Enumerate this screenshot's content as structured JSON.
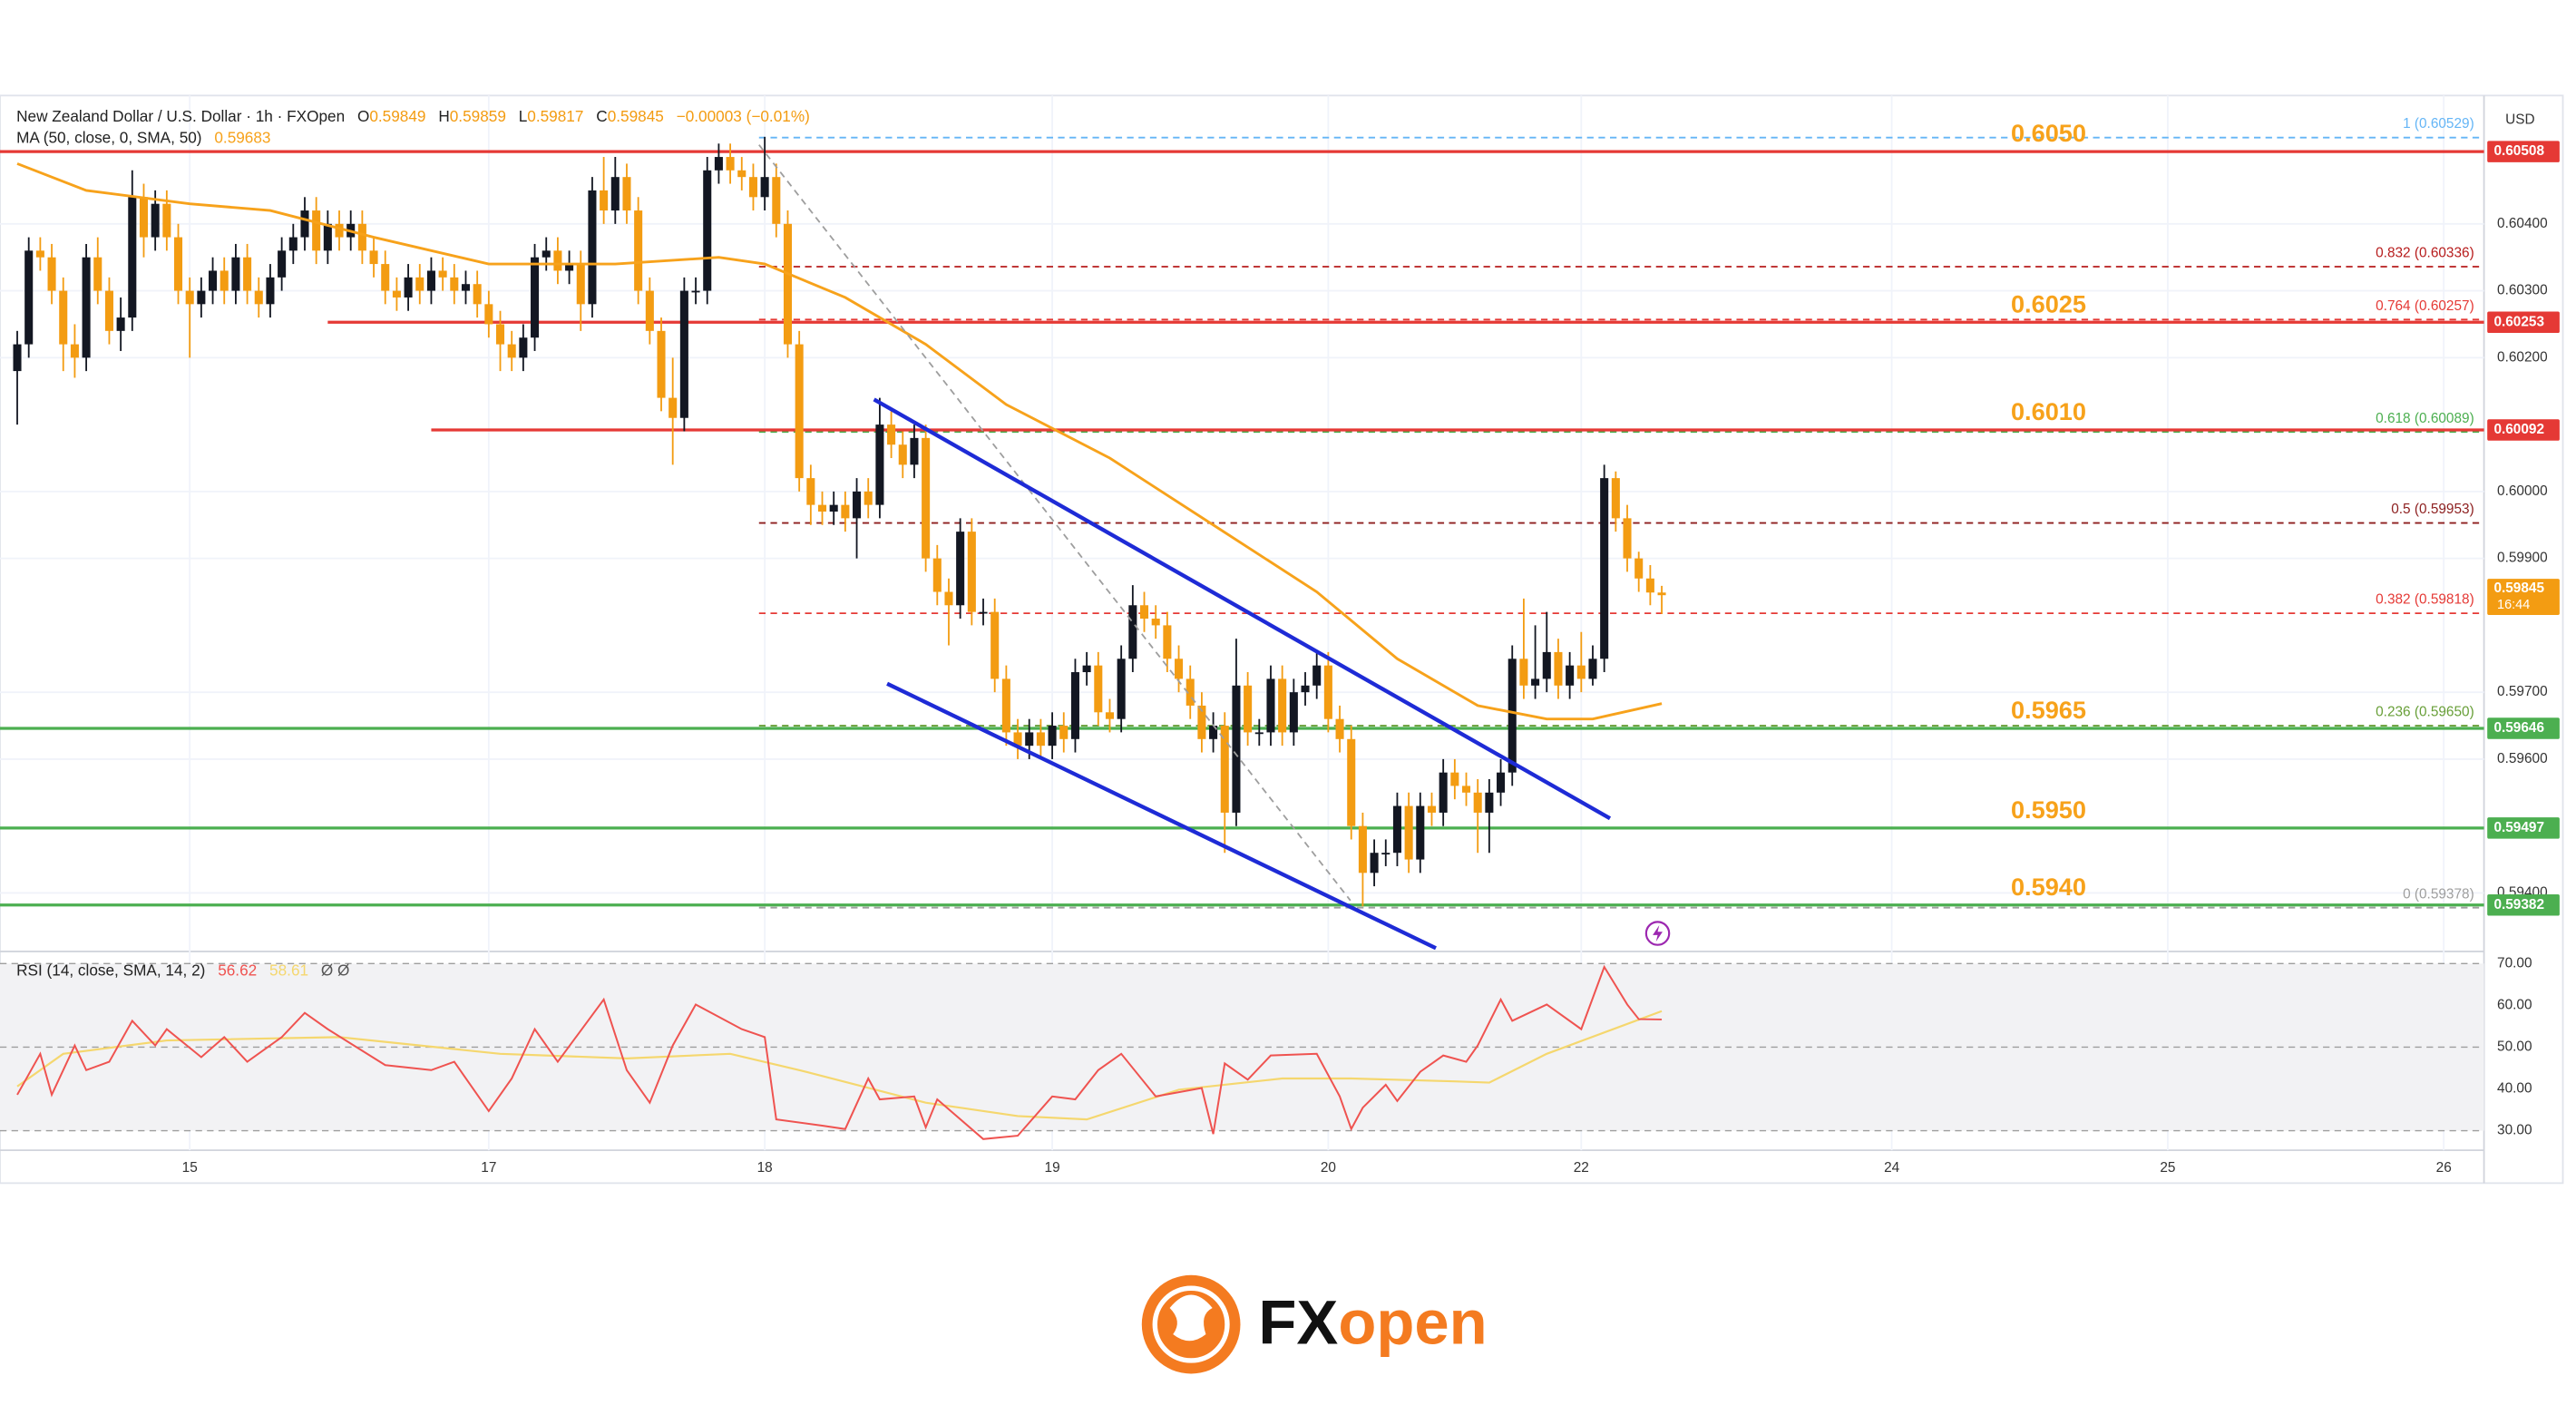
{
  "chart_data": {
    "type": "candlestick",
    "title": "New Zealand Dollar / U.S. Dollar · 1h · FXOpen",
    "ohlc_labels": [
      "O",
      "H",
      "L",
      "C"
    ],
    "change": "−0.00003 (−0.01%)",
    "currency": "USD",
    "up_color": "#131722",
    "down_color": "#f39c12",
    "open": [
      0.6018,
      0.6022,
      0.6036,
      0.6035,
      0.603,
      0.6022,
      0.602,
      0.6035,
      0.603,
      0.6024,
      0.6026,
      0.6044,
      0.6038,
      0.6043,
      0.6038,
      0.603,
      0.6028,
      0.603,
      0.6033,
      0.603,
      0.6035,
      0.603,
      0.6028,
      0.6032,
      0.6036,
      0.6038,
      0.6042,
      0.6036,
      0.604,
      0.6038,
      0.604,
      0.6036,
      0.6034,
      0.603,
      0.6029,
      0.6032,
      0.603,
      0.6033,
      0.6032,
      0.603,
      0.6031,
      0.6028,
      0.6025,
      0.6022,
      0.602,
      0.6023,
      0.6035,
      0.6036,
      0.6033,
      0.6034,
      0.6028,
      0.6045,
      0.6042,
      0.6047,
      0.6042,
      0.603,
      0.6024,
      0.6014,
      0.6011,
      0.603,
      0.603,
      0.6048,
      0.605,
      0.6048,
      0.6047,
      0.6044,
      0.6047,
      0.604,
      0.6022,
      0.6002,
      0.5998,
      0.5997,
      0.5998,
      0.5996,
      0.6,
      0.5998,
      0.601,
      0.6007,
      0.6004,
      0.6008,
      0.599,
      0.5985,
      0.5983,
      0.5994,
      0.5982,
      0.5982,
      0.5972,
      0.5964,
      0.5962,
      0.5964,
      0.5962,
      0.5965,
      0.5963,
      0.5973,
      0.5974,
      0.5967,
      0.5966,
      0.5975,
      0.5983,
      0.5981,
      0.598,
      0.5975,
      0.5972,
      0.5968,
      0.5963,
      0.5965,
      0.5952,
      0.5971,
      0.5964,
      0.5964,
      0.5972,
      0.5964,
      0.597,
      0.5971,
      0.5974,
      0.5966,
      0.5963,
      0.595,
      0.5943,
      0.5946,
      0.5946,
      0.5953,
      0.5945,
      0.5953,
      0.5952,
      0.5958,
      0.5956,
      0.5955,
      0.5952,
      0.5955,
      0.5958,
      0.5975,
      0.5971,
      0.5972,
      0.5976,
      0.5971,
      0.5974,
      0.5972,
      0.5975,
      0.6002,
      0.5996,
      0.599,
      0.5987,
      0.59849
    ],
    "high": [
      0.6024,
      0.6038,
      0.6038,
      0.6037,
      0.6032,
      0.6025,
      0.6037,
      0.6038,
      0.6032,
      0.6029,
      0.6048,
      0.6046,
      0.6045,
      0.6045,
      0.604,
      0.6032,
      0.6032,
      0.6035,
      0.6035,
      0.6037,
      0.6037,
      0.6032,
      0.6034,
      0.6038,
      0.604,
      0.6044,
      0.6044,
      0.6042,
      0.6042,
      0.6042,
      0.6042,
      0.6038,
      0.6036,
      0.6032,
      0.6034,
      0.6034,
      0.6035,
      0.6035,
      0.6034,
      0.6033,
      0.6033,
      0.603,
      0.6027,
      0.6024,
      0.6025,
      0.6037,
      0.6038,
      0.6038,
      0.6036,
      0.6036,
      0.6047,
      0.605,
      0.605,
      0.6049,
      0.6044,
      0.6032,
      0.6026,
      0.602,
      0.6032,
      0.6032,
      0.605,
      0.6052,
      0.6052,
      0.605,
      0.6049,
      0.6053,
      0.6049,
      0.6042,
      0.6024,
      0.6004,
      0.6,
      0.6,
      0.6,
      0.6002,
      0.6002,
      0.6014,
      0.6012,
      0.6009,
      0.601,
      0.601,
      0.5992,
      0.5987,
      0.5996,
      0.5996,
      0.5984,
      0.5984,
      0.5974,
      0.5966,
      0.5966,
      0.5966,
      0.5967,
      0.5967,
      0.5975,
      0.5976,
      0.5976,
      0.5969,
      0.5977,
      0.5986,
      0.5985,
      0.5983,
      0.5982,
      0.5977,
      0.5974,
      0.597,
      0.5967,
      0.5967,
      0.5978,
      0.5973,
      0.5966,
      0.5974,
      0.5974,
      0.5972,
      0.5973,
      0.5976,
      0.5976,
      0.5968,
      0.5965,
      0.5952,
      0.5948,
      0.5948,
      0.5955,
      0.5955,
      0.5955,
      0.5955,
      0.596,
      0.596,
      0.5958,
      0.5957,
      0.5957,
      0.596,
      0.5977,
      0.5984,
      0.598,
      0.5982,
      0.5978,
      0.5976,
      0.5979,
      0.5977,
      0.6004,
      0.6003,
      0.5998,
      0.5991,
      0.5989,
      0.59859
    ],
    "low": [
      0.601,
      0.602,
      0.6033,
      0.6028,
      0.6018,
      0.6017,
      0.6018,
      0.6028,
      0.6022,
      0.6021,
      0.6024,
      0.6035,
      0.6036,
      0.6036,
      0.6028,
      0.602,
      0.6026,
      0.6028,
      0.6028,
      0.6028,
      0.6028,
      0.6026,
      0.6026,
      0.603,
      0.6034,
      0.6036,
      0.6034,
      0.6034,
      0.6036,
      0.6036,
      0.6034,
      0.6032,
      0.6028,
      0.6027,
      0.6027,
      0.6028,
      0.6028,
      0.603,
      0.6028,
      0.6028,
      0.6026,
      0.6023,
      0.6018,
      0.6018,
      0.6018,
      0.6021,
      0.6033,
      0.6031,
      0.6031,
      0.6024,
      0.6026,
      0.604,
      0.604,
      0.604,
      0.6028,
      0.6022,
      0.6012,
      0.6004,
      0.6009,
      0.6028,
      0.6028,
      0.6046,
      0.6046,
      0.6045,
      0.6042,
      0.6042,
      0.6038,
      0.602,
      0.6,
      0.5995,
      0.5995,
      0.5995,
      0.5994,
      0.599,
      0.5996,
      0.5996,
      0.6005,
      0.6002,
      0.6002,
      0.5988,
      0.5983,
      0.5977,
      0.5981,
      0.598,
      0.598,
      0.597,
      0.5962,
      0.596,
      0.596,
      0.596,
      0.596,
      0.5961,
      0.5961,
      0.5971,
      0.5965,
      0.5964,
      0.5964,
      0.5973,
      0.5979,
      0.5978,
      0.5973,
      0.597,
      0.5966,
      0.5961,
      0.5961,
      0.5946,
      0.595,
      0.5962,
      0.5962,
      0.5962,
      0.5962,
      0.5962,
      0.5968,
      0.5969,
      0.5964,
      0.5961,
      0.5948,
      0.5938,
      0.5941,
      0.5944,
      0.5944,
      0.5943,
      0.5943,
      0.595,
      0.595,
      0.5954,
      0.5953,
      0.5946,
      0.5946,
      0.5953,
      0.5956,
      0.5969,
      0.5969,
      0.597,
      0.5969,
      0.5969,
      0.597,
      0.5971,
      0.5973,
      0.5994,
      0.5988,
      0.5985,
      0.5983,
      0.59817
    ],
    "close": [
      0.6022,
      0.6036,
      0.6035,
      0.603,
      0.6022,
      0.602,
      0.6035,
      0.603,
      0.6024,
      0.6026,
      0.6044,
      0.6038,
      0.6043,
      0.6038,
      0.603,
      0.6028,
      0.603,
      0.6033,
      0.603,
      0.6035,
      0.603,
      0.6028,
      0.6032,
      0.6036,
      0.6038,
      0.6042,
      0.6036,
      0.604,
      0.6038,
      0.604,
      0.6036,
      0.6034,
      0.603,
      0.6029,
      0.6032,
      0.603,
      0.6033,
      0.6032,
      0.603,
      0.6031,
      0.6028,
      0.6025,
      0.6022,
      0.602,
      0.6023,
      0.6035,
      0.6036,
      0.6033,
      0.6034,
      0.6028,
      0.6045,
      0.6042,
      0.6047,
      0.6042,
      0.603,
      0.6024,
      0.6014,
      0.6011,
      0.603,
      0.603,
      0.6048,
      0.605,
      0.6048,
      0.6047,
      0.6044,
      0.6047,
      0.604,
      0.6022,
      0.6002,
      0.5998,
      0.5997,
      0.5998,
      0.5996,
      0.6,
      0.5998,
      0.601,
      0.6007,
      0.6004,
      0.6008,
      0.599,
      0.5985,
      0.5983,
      0.5994,
      0.5982,
      0.5982,
      0.5972,
      0.5964,
      0.5962,
      0.5964,
      0.5962,
      0.5965,
      0.5963,
      0.5973,
      0.5974,
      0.5967,
      0.5966,
      0.5975,
      0.5983,
      0.5981,
      0.598,
      0.5975,
      0.5972,
      0.5968,
      0.5963,
      0.5965,
      0.5952,
      0.5971,
      0.5964,
      0.5964,
      0.5972,
      0.5964,
      0.597,
      0.5971,
      0.5974,
      0.5966,
      0.5963,
      0.595,
      0.5943,
      0.5946,
      0.5946,
      0.5953,
      0.5945,
      0.5953,
      0.5952,
      0.5958,
      0.5956,
      0.5955,
      0.5952,
      0.5955,
      0.5958,
      0.5975,
      0.5971,
      0.5972,
      0.5976,
      0.5971,
      0.5974,
      0.5972,
      0.5975,
      0.6002,
      0.5996,
      0.599,
      0.5987,
      0.59849,
      0.59845
    ],
    "countdown": "16:44",
    "xlim": [
      -0.5,
      214.5
    ],
    "xticks": [
      15,
      {
        "value": 41,
        "label": "17"
      },
      {
        "value": 65,
        "label": "18"
      },
      {
        "value": 90,
        "label": "19"
      },
      {
        "value": 114,
        "label": "20"
      },
      {
        "value": 136,
        "label": "22"
      },
      {
        "value": 163,
        "label": "24"
      },
      {
        "value": 187,
        "label": "25"
      },
      {
        "value": 211,
        "label": "26"
      }
    ],
    "ylim": [
      0.59315,
      0.60582
    ],
    "yticks": [
      {
        "value": 0.604,
        "label": "0.60400"
      },
      {
        "value": 0.603,
        "label": "0.60300"
      },
      {
        "value": 0.602,
        "label": "0.60200"
      },
      {
        "value": 0.6,
        "label": "0.60000"
      },
      {
        "value": 0.599,
        "label": "0.59900"
      },
      {
        "value": 0.597,
        "label": "0.59700"
      },
      {
        "value": 0.596,
        "label": "0.59600"
      },
      {
        "value": 0.594,
        "label": "0.59400"
      }
    ],
    "grid": true,
    "ma": {
      "name": "MA (50, close, 0, SMA, 50)",
      "color": "#f7a21b",
      "x": [
        0,
        6,
        15,
        22,
        31,
        41,
        52,
        61,
        65,
        72,
        79,
        86,
        95,
        104,
        113,
        120,
        127,
        133,
        137,
        143
      ],
      "values": [
        0.6049,
        0.6045,
        0.6043,
        0.6042,
        0.6038,
        0.6034,
        0.6034,
        0.6035,
        0.6034,
        0.6029,
        0.6022,
        0.6013,
        0.6005,
        0.5995,
        0.5985,
        0.5975,
        0.5968,
        0.5966,
        0.5966,
        0.59683
      ]
    },
    "levels": [
      {
        "label": "0.6050",
        "price": 0.60508,
        "color": "#e53935"
      },
      {
        "label": "0.6025",
        "price": 0.60253,
        "color": "#e53935"
      },
      {
        "label": "0.6010",
        "price": 0.60092,
        "color": "#e53935"
      },
      {
        "label": "0.5965",
        "price": 0.59646,
        "color": "#4caf50"
      },
      {
        "label": "0.5950",
        "price": 0.59497,
        "color": "#4caf50"
      },
      {
        "label": "0.5940",
        "price": 0.59382,
        "color": "#4caf50"
      }
    ],
    "level_label_color": "#f7a21b",
    "fib": [
      {
        "label": "1 (0.60529)",
        "price": 0.60529,
        "color": "#64b5f6"
      },
      {
        "label": "0.832 (0.60336)",
        "price": 0.60336,
        "color": "#b71c1c"
      },
      {
        "label": "0.764 (0.60257)",
        "price": 0.60257,
        "color": "#e53935"
      },
      {
        "label": "0.618 (0.60089)",
        "price": 0.60089,
        "color": "#4caf50"
      },
      {
        "label": "0.5 (0.59953)",
        "price": 0.59953,
        "color": "#8d1f1f"
      },
      {
        "label": "0.382 (0.59818)",
        "price": 0.59818,
        "color": "#e53935"
      },
      {
        "label": "0.236 (0.59650)",
        "price": 0.5965,
        "color": "#689f38"
      },
      {
        "label": "0 (0.59378)",
        "price": 0.59378,
        "color": "#9e9e9e"
      }
    ],
    "rsi": {
      "name": "RSI (14, close, SMA, 14, 2)",
      "extra": "Ø Ø",
      "color": "#ef5350",
      "x": [
        0,
        2,
        3,
        5,
        6,
        8,
        10,
        12,
        13,
        16,
        18,
        20,
        23,
        25,
        27,
        32,
        36,
        38,
        41,
        43,
        45,
        47,
        51,
        53,
        55,
        57,
        59,
        63,
        65,
        66,
        70,
        72,
        74,
        75,
        78,
        79,
        80,
        84,
        87,
        90,
        92,
        94,
        96,
        99,
        103,
        104,
        105,
        107,
        109,
        113,
        115,
        116,
        117,
        119,
        120,
        122,
        124,
        126,
        127,
        129,
        130,
        133,
        136,
        138,
        140,
        141,
        143
      ],
      "values": [
        38.6,
        48.4,
        38.6,
        50.4,
        44.5,
        46.5,
        56.3,
        50.4,
        54.3,
        47.6,
        52.4,
        46.5,
        52.4,
        58.2,
        54.3,
        45.7,
        44.5,
        46.5,
        34.7,
        42.5,
        54.3,
        46.5,
        61.4,
        44.5,
        36.7,
        50.4,
        60.2,
        54.3,
        52.4,
        32.7,
        31.2,
        30.4,
        42.5,
        37.5,
        38.2,
        30.8,
        37.5,
        28,
        28.8,
        38.2,
        37.5,
        44.5,
        48.4,
        38.2,
        40.2,
        29.2,
        46.1,
        42.2,
        48,
        48.4,
        38.2,
        30.4,
        35.5,
        41,
        37.1,
        44.1,
        48,
        46.5,
        50.4,
        61.4,
        56.3,
        60.2,
        54.3,
        69.2,
        60.2,
        56.7,
        56.62
      ],
      "ma": {
        "color": "#f5d76e",
        "x": [
          0,
          4,
          13,
          28,
          42,
          53,
          62,
          68,
          79,
          87,
          93,
          101,
          110,
          116,
          125,
          128,
          133,
          143
        ],
        "values": [
          40.6,
          48.4,
          51.6,
          52.4,
          48.4,
          47.3,
          48.4,
          44.5,
          36.7,
          33.5,
          32.7,
          39.8,
          42.5,
          42.5,
          41.8,
          41.5,
          48.4,
          58.61
        ]
      },
      "ylim": [
        26.5,
        72.5
      ],
      "yticks": [
        {
          "value": 70,
          "label": "70.00"
        },
        {
          "value": 60,
          "label": "60.00"
        },
        {
          "value": 50,
          "label": "50.00"
        },
        {
          "value": 40,
          "label": "40.00"
        },
        {
          "value": 30,
          "label": "30.00"
        }
      ]
    }
  },
  "logo": {
    "part1": "FX",
    "part2": "open"
  }
}
